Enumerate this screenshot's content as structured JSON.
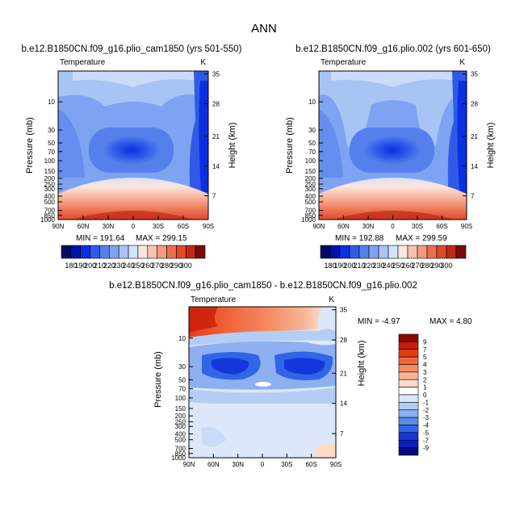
{
  "page_title": "ANN",
  "chart_data": [
    {
      "type": "heatmap",
      "title": "b.e12.B1850CN.f09_g16.plio_cam1850 (yrs 501-550)",
      "subtitle_left": "Temperature",
      "subtitle_right": "K",
      "xlabel": "",
      "ylabel": "Pressure (mb)",
      "ylabel_right": "Height (km)",
      "x_ticks": [
        "90N",
        "60N",
        "30N",
        "0",
        "30S",
        "60S",
        "90S"
      ],
      "y_ticks": [
        "10",
        "30",
        "50",
        "70",
        "100",
        "150",
        "200",
        "250",
        "300",
        "400",
        "500",
        "700",
        "850",
        "1000"
      ],
      "y2_ticks": [
        "35",
        "28",
        "21",
        "14",
        "7"
      ],
      "min_label": "MIN = 191.64",
      "max_label": "MAX = 299.15",
      "min": 191.64,
      "max": 299.15,
      "colorbar": {
        "orientation": "horizontal",
        "labels": [
          "180",
          "190",
          "200",
          "210",
          "220",
          "230",
          "240",
          "250",
          "260",
          "270",
          "280",
          "290",
          "300"
        ],
        "colors": [
          "#000b64",
          "#0012ad",
          "#0a2fe0",
          "#2f5ae8",
          "#5580ec",
          "#7ea3f0",
          "#a8c4f5",
          "#d2e2fa",
          "#fbe6e0",
          "#f8c2b0",
          "#f49a80",
          "#ec6e50",
          "#e04a2c",
          "#bf2a14",
          "#7a0c04"
        ]
      }
    },
    {
      "type": "heatmap",
      "title": "b.e12.B1850CN.f09_g16.plio.002 (yrs 601-650)",
      "subtitle_left": "Temperature",
      "subtitle_right": "K",
      "xlabel": "",
      "ylabel": "Pressure (mb)",
      "ylabel_right": "Height (km)",
      "x_ticks": [
        "90N",
        "60N",
        "30N",
        "0",
        "30S",
        "60S",
        "90S"
      ],
      "y_ticks": [
        "10",
        "30",
        "50",
        "70",
        "100",
        "150",
        "200",
        "250",
        "300",
        "400",
        "500",
        "700",
        "850",
        "1000"
      ],
      "y2_ticks": [
        "35",
        "28",
        "21",
        "14",
        "7"
      ],
      "min_label": "MIN = 192.88",
      "max_label": "MAX = 299.59",
      "min": 192.88,
      "max": 299.59,
      "colorbar": {
        "orientation": "horizontal",
        "labels": [
          "180",
          "190",
          "200",
          "210",
          "220",
          "230",
          "240",
          "250",
          "260",
          "270",
          "280",
          "290",
          "300"
        ],
        "colors": [
          "#000b64",
          "#0012ad",
          "#0a2fe0",
          "#2f5ae8",
          "#5580ec",
          "#7ea3f0",
          "#a8c4f5",
          "#d2e2fa",
          "#fbe6e0",
          "#f8c2b0",
          "#f49a80",
          "#ec6e50",
          "#e04a2c",
          "#bf2a14",
          "#7a0c04"
        ]
      }
    },
    {
      "type": "heatmap",
      "title": "b.e12.B1850CN.f09_g16.plio_cam1850 - b.e12.B1850CN.f09_g16.plio.002",
      "subtitle_left": "Temperature",
      "subtitle_right": "K",
      "xlabel": "",
      "ylabel": "Pressure (mb)",
      "ylabel_right": "Height (km)",
      "x_ticks": [
        "90N",
        "60N",
        "30N",
        "0",
        "30S",
        "60S",
        "90S"
      ],
      "y_ticks": [
        "10",
        "30",
        "50",
        "70",
        "100",
        "150",
        "200",
        "250",
        "300",
        "400",
        "500",
        "700",
        "850",
        "1000"
      ],
      "y2_ticks": [
        "35",
        "28",
        "21",
        "14",
        "7"
      ],
      "min_label": "MIN = -4.97",
      "max_label": "MAX = 4.80",
      "min": -4.97,
      "max": 4.8,
      "colorbar": {
        "orientation": "vertical",
        "labels": [
          "9",
          "7",
          "5",
          "4",
          "3",
          "2",
          "1",
          "0",
          "-1",
          "-2",
          "-3",
          "-4",
          "-5",
          "-7",
          "-9"
        ],
        "colors": [
          "#8b0a00",
          "#c81e0a",
          "#e63c14",
          "#f0643c",
          "#f48c64",
          "#f8b496",
          "#fcdcc8",
          "#ffffff",
          "#dce8fa",
          "#b4cdf5",
          "#8cb0f0",
          "#5a8ceb",
          "#3264e6",
          "#1437dc",
          "#0a1ebe",
          "#000a82"
        ]
      }
    }
  ]
}
